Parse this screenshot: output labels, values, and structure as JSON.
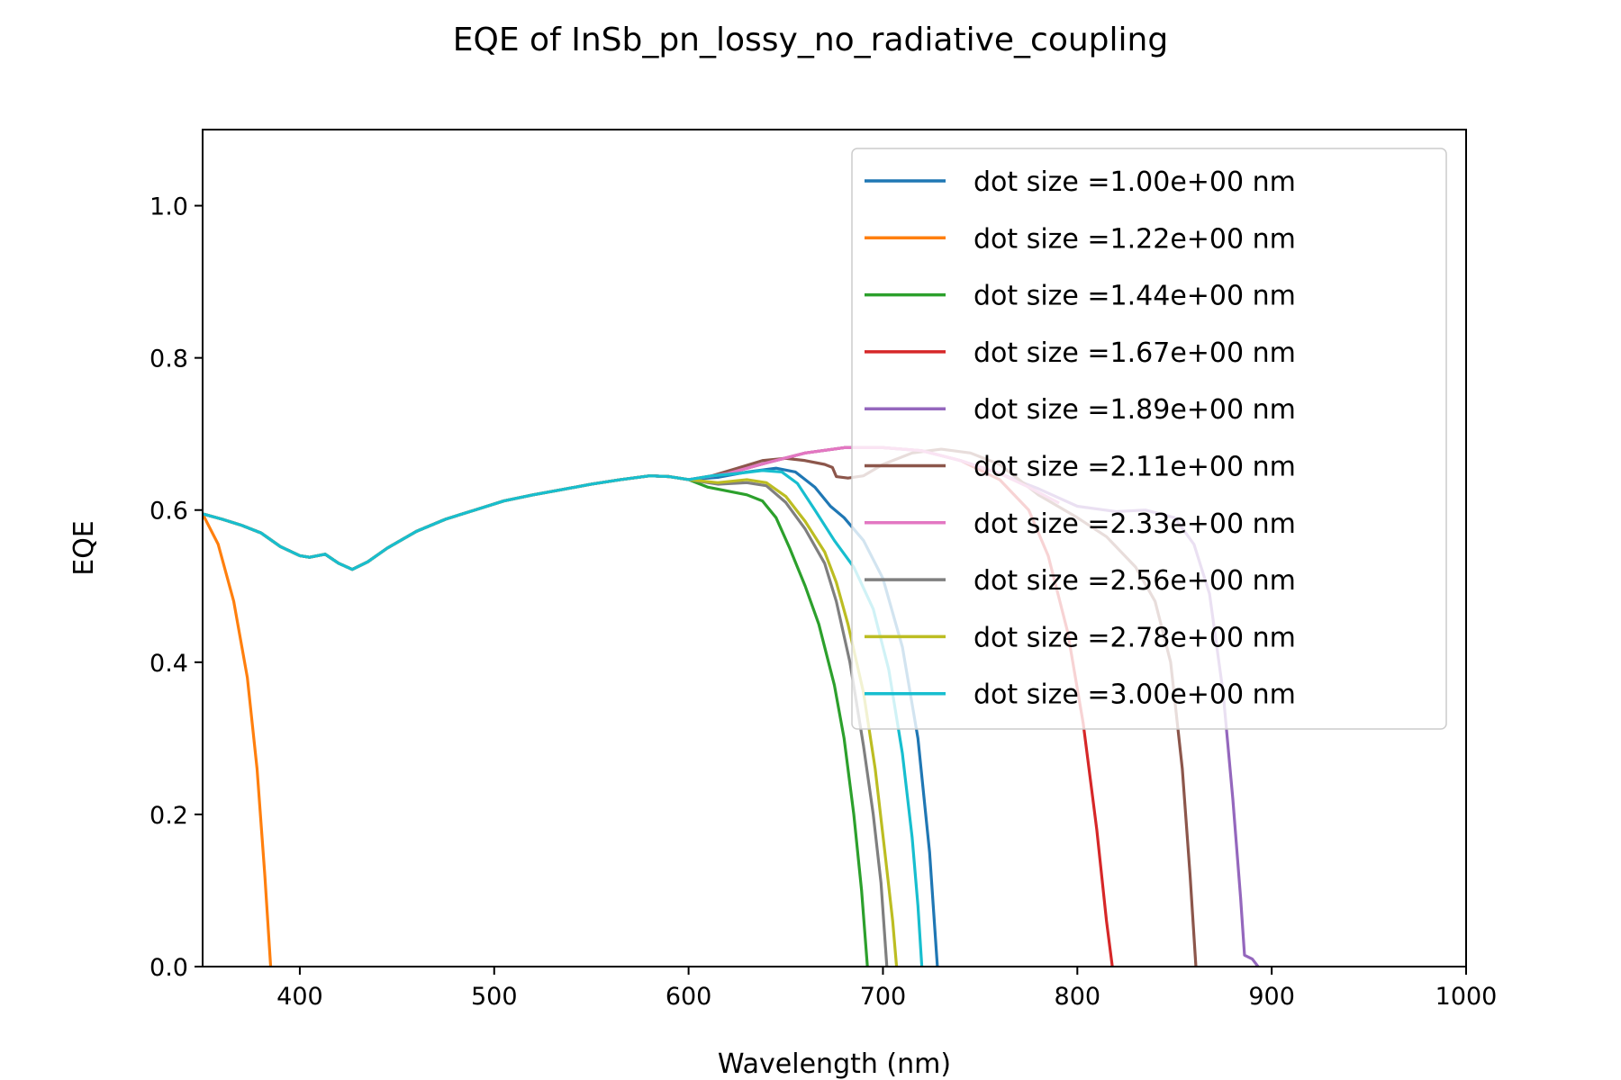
{
  "chart_data": {
    "type": "line",
    "title": "EQE of  InSb_pn_lossy_no_radiative_coupling",
    "xlabel": "Wavelength (nm)",
    "ylabel": "EQE",
    "xlim": [
      350,
      1000
    ],
    "ylim": [
      0,
      1.1
    ],
    "xticks": [
      400,
      500,
      600,
      700,
      800,
      900,
      1000
    ],
    "yticks": [
      0.0,
      0.2,
      0.4,
      0.6,
      0.8,
      1.0
    ],
    "xtick_labels": [
      "400",
      "500",
      "600",
      "700",
      "800",
      "900",
      "1000"
    ],
    "ytick_labels": [
      "0.0",
      "0.2",
      "0.4",
      "0.6",
      "0.8",
      "1.0"
    ],
    "grid": false,
    "legend_position": "upper right",
    "base_curve": [
      [
        350,
        0.595
      ],
      [
        360,
        0.588
      ],
      [
        370,
        0.58
      ],
      [
        380,
        0.57
      ],
      [
        390,
        0.552
      ],
      [
        400,
        0.54
      ],
      [
        405,
        0.538
      ],
      [
        413,
        0.542
      ],
      [
        420,
        0.53
      ],
      [
        427,
        0.522
      ],
      [
        435,
        0.532
      ],
      [
        445,
        0.55
      ],
      [
        460,
        0.572
      ],
      [
        475,
        0.588
      ],
      [
        490,
        0.6
      ],
      [
        505,
        0.612
      ],
      [
        520,
        0.62
      ],
      [
        535,
        0.627
      ],
      [
        550,
        0.634
      ],
      [
        565,
        0.64
      ],
      [
        580,
        0.645
      ],
      [
        590,
        0.644
      ],
      [
        600,
        0.64
      ]
    ],
    "series": [
      {
        "name": "dot size =1.00e+00 nm",
        "color": "#1f77b4",
        "points": [
          [
            600,
            0.64
          ],
          [
            615,
            0.643
          ],
          [
            630,
            0.65
          ],
          [
            645,
            0.655
          ],
          [
            655,
            0.65
          ],
          [
            665,
            0.63
          ],
          [
            673,
            0.605
          ],
          [
            680,
            0.59
          ],
          [
            690,
            0.56
          ],
          [
            700,
            0.51
          ],
          [
            710,
            0.42
          ],
          [
            718,
            0.3
          ],
          [
            724,
            0.15
          ],
          [
            728,
            0.0
          ]
        ]
      },
      {
        "name": "dot size =1.22e+00 nm",
        "color": "#ff7f0e",
        "points": [
          [
            350,
            0.595
          ],
          [
            358,
            0.555
          ],
          [
            366,
            0.48
          ],
          [
            373,
            0.38
          ],
          [
            378,
            0.26
          ],
          [
            382,
            0.12
          ],
          [
            385,
            0.0
          ]
        ]
      },
      {
        "name": "dot size =1.44e+00 nm",
        "color": "#2ca02c",
        "points": [
          [
            600,
            0.638
          ],
          [
            610,
            0.63
          ],
          [
            620,
            0.625
          ],
          [
            630,
            0.62
          ],
          [
            638,
            0.612
          ],
          [
            645,
            0.59
          ],
          [
            652,
            0.55
          ],
          [
            660,
            0.5
          ],
          [
            667,
            0.45
          ],
          [
            672,
            0.4
          ],
          [
            675,
            0.37
          ],
          [
            680,
            0.3
          ],
          [
            685,
            0.2
          ],
          [
            689,
            0.1
          ],
          [
            692,
            0.0
          ]
        ]
      },
      {
        "name": "dot size =1.67e+00 nm",
        "color": "#d62728",
        "points": [
          [
            600,
            0.64
          ],
          [
            620,
            0.648
          ],
          [
            640,
            0.662
          ],
          [
            660,
            0.675
          ],
          [
            680,
            0.682
          ],
          [
            700,
            0.682
          ],
          [
            720,
            0.678
          ],
          [
            740,
            0.665
          ],
          [
            760,
            0.64
          ],
          [
            775,
            0.6
          ],
          [
            785,
            0.54
          ],
          [
            795,
            0.44
          ],
          [
            803,
            0.32
          ],
          [
            810,
            0.18
          ],
          [
            815,
            0.06
          ],
          [
            818,
            0.0
          ]
        ]
      },
      {
        "name": "dot size =1.89e+00 nm",
        "color": "#9467bd",
        "points": [
          [
            600,
            0.64
          ],
          [
            620,
            0.648
          ],
          [
            640,
            0.662
          ],
          [
            660,
            0.675
          ],
          [
            680,
            0.682
          ],
          [
            700,
            0.682
          ],
          [
            720,
            0.678
          ],
          [
            740,
            0.665
          ],
          [
            760,
            0.648
          ],
          [
            780,
            0.628
          ],
          [
            800,
            0.605
          ],
          [
            820,
            0.598
          ],
          [
            835,
            0.6
          ],
          [
            850,
            0.59
          ],
          [
            860,
            0.555
          ],
          [
            868,
            0.49
          ],
          [
            875,
            0.36
          ],
          [
            880,
            0.22
          ],
          [
            884,
            0.09
          ],
          [
            886,
            0.015
          ],
          [
            890,
            0.01
          ],
          [
            893,
            0.0
          ]
        ]
      },
      {
        "name": "dot size =2.11e+00 nm",
        "color": "#8c564b",
        "points": [
          [
            600,
            0.64
          ],
          [
            612,
            0.645
          ],
          [
            625,
            0.655
          ],
          [
            638,
            0.665
          ],
          [
            650,
            0.668
          ],
          [
            660,
            0.665
          ],
          [
            670,
            0.66
          ],
          [
            674,
            0.656
          ],
          [
            676,
            0.644
          ],
          [
            682,
            0.642
          ],
          [
            690,
            0.645
          ],
          [
            700,
            0.66
          ],
          [
            715,
            0.675
          ],
          [
            730,
            0.68
          ],
          [
            745,
            0.675
          ],
          [
            760,
            0.66
          ],
          [
            780,
            0.62
          ],
          [
            800,
            0.59
          ],
          [
            815,
            0.565
          ],
          [
            830,
            0.525
          ],
          [
            840,
            0.48
          ],
          [
            848,
            0.4
          ],
          [
            854,
            0.26
          ],
          [
            858,
            0.12
          ],
          [
            861,
            0.0
          ]
        ]
      },
      {
        "name": "dot size =2.33e+00 nm",
        "color": "#e377c2",
        "points": [
          [
            600,
            0.64
          ],
          [
            620,
            0.648
          ],
          [
            640,
            0.662
          ],
          [
            660,
            0.675
          ],
          [
            680,
            0.682
          ],
          [
            700,
            0.682
          ],
          [
            720,
            0.678
          ],
          [
            740,
            0.665
          ],
          [
            760,
            0.648
          ],
          [
            775,
            0.63
          ],
          [
            790,
            0.61
          ]
        ]
      },
      {
        "name": "dot size =2.56e+00 nm",
        "color": "#7f7f7f",
        "points": [
          [
            600,
            0.638
          ],
          [
            615,
            0.634
          ],
          [
            630,
            0.636
          ],
          [
            640,
            0.632
          ],
          [
            650,
            0.61
          ],
          [
            660,
            0.575
          ],
          [
            670,
            0.53
          ],
          [
            676,
            0.48
          ],
          [
            683,
            0.4
          ],
          [
            690,
            0.29
          ],
          [
            695,
            0.2
          ],
          [
            699,
            0.11
          ],
          [
            702,
            0.0
          ]
        ]
      },
      {
        "name": "dot size =2.78e+00 nm",
        "color": "#bcbd22",
        "points": [
          [
            600,
            0.638
          ],
          [
            615,
            0.636
          ],
          [
            630,
            0.64
          ],
          [
            640,
            0.636
          ],
          [
            650,
            0.618
          ],
          [
            660,
            0.585
          ],
          [
            670,
            0.545
          ],
          [
            676,
            0.505
          ],
          [
            682,
            0.45
          ],
          [
            690,
            0.36
          ],
          [
            696,
            0.26
          ],
          [
            701,
            0.15
          ],
          [
            705,
            0.06
          ],
          [
            707,
            0.0
          ]
        ]
      },
      {
        "name": "dot size =3.00e+00 nm",
        "color": "#17becf",
        "points": [
          [
            600,
            0.642
          ],
          [
            612,
            0.645
          ],
          [
            625,
            0.648
          ],
          [
            638,
            0.652
          ],
          [
            648,
            0.65
          ],
          [
            656,
            0.635
          ],
          [
            665,
            0.6
          ],
          [
            675,
            0.56
          ],
          [
            685,
            0.525
          ],
          [
            695,
            0.47
          ],
          [
            703,
            0.39
          ],
          [
            710,
            0.28
          ],
          [
            715,
            0.17
          ],
          [
            718,
            0.08
          ],
          [
            720,
            0.0
          ]
        ]
      }
    ]
  }
}
